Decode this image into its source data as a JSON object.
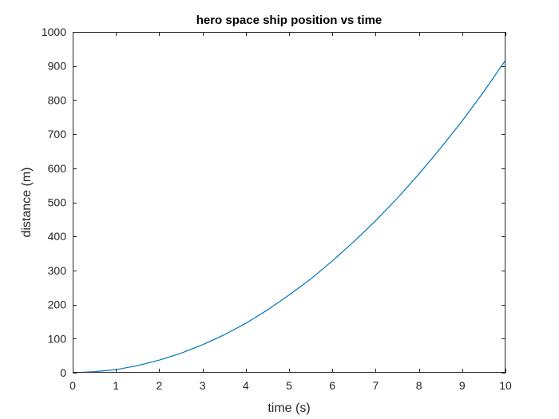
{
  "chart_data": {
    "type": "line",
    "title": "hero space ship position vs time",
    "xlabel": "time (s)",
    "ylabel": "distance (m)",
    "xlim": [
      0,
      10
    ],
    "ylim": [
      0,
      1000
    ],
    "xticks": [
      0,
      1,
      2,
      3,
      4,
      5,
      6,
      7,
      8,
      9,
      10
    ],
    "yticks": [
      0,
      100,
      200,
      300,
      400,
      500,
      600,
      700,
      800,
      900,
      1000
    ],
    "grid": false,
    "box": true,
    "series": [
      {
        "color": "#0072BD",
        "x": [
          0,
          0.5,
          1,
          1.5,
          2,
          2.5,
          3,
          3.5,
          4,
          4.5,
          5,
          5.5,
          6,
          6.5,
          7,
          7.5,
          8,
          8.5,
          9,
          9.5,
          10
        ],
        "y": [
          0,
          3,
          9,
          21,
          37,
          57,
          82,
          111,
          145,
          184,
          228,
          275,
          328,
          385,
          446,
          512,
          583,
          659,
          739,
          825,
          917
        ]
      }
    ]
  }
}
